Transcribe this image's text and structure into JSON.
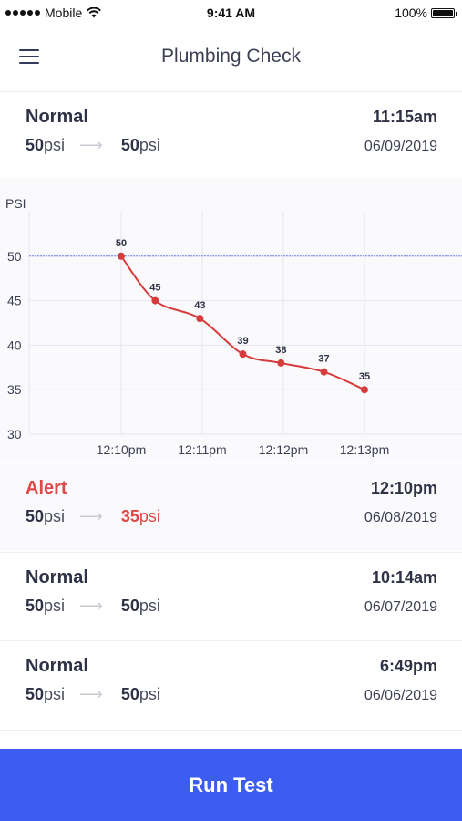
{
  "status_bar": {
    "carrier": "Mobile",
    "time": "9:41 AM",
    "battery": "100%"
  },
  "header": {
    "title": "Plumbing Check",
    "menu_icon": "hamburger-menu-icon"
  },
  "entries": [
    {
      "status": "Normal",
      "time": "11:15am",
      "start": "50",
      "start_unit": "psi",
      "end": "50",
      "end_unit": "psi",
      "date": "06/09/2019",
      "alert": false
    },
    {
      "status": "Alert",
      "time": "12:10pm",
      "start": "50",
      "start_unit": "psi",
      "end": "35",
      "end_unit": "psi",
      "date": "06/08/2019",
      "alert": true
    },
    {
      "status": "Normal",
      "time": "10:14am",
      "start": "50",
      "start_unit": "psi",
      "end": "50",
      "end_unit": "psi",
      "date": "06/07/2019",
      "alert": false
    },
    {
      "status": "Normal",
      "time": "6:49pm",
      "start": "50",
      "start_unit": "psi",
      "end": "50",
      "end_unit": "psi",
      "date": "06/06/2019",
      "alert": false
    }
  ],
  "chart_data": {
    "type": "line",
    "ylabel": "PSI",
    "xlabel": "",
    "ylim": [
      30,
      55
    ],
    "xlim": [
      0,
      3.35
    ],
    "yticks": [
      30,
      35,
      40,
      45,
      50
    ],
    "xtick_positions": [
      0,
      1,
      2,
      3
    ],
    "xtick_labels": [
      "12:10pm",
      "12:11pm",
      "12:12pm",
      "12:13pm"
    ],
    "reference_line": 50,
    "series": [
      {
        "x": [
          0,
          0.42,
          0.97,
          1.5,
          1.97,
          2.5,
          3.0
        ],
        "values": [
          50,
          45,
          43,
          39,
          38,
          37,
          35
        ]
      }
    ],
    "colors": {
      "line": "#d63c3c",
      "reference": "#6a86e8",
      "grid": "#e6e6ec"
    },
    "grid": true
  },
  "run_button": {
    "label": "Run Test",
    "color": "#3d5df1"
  }
}
